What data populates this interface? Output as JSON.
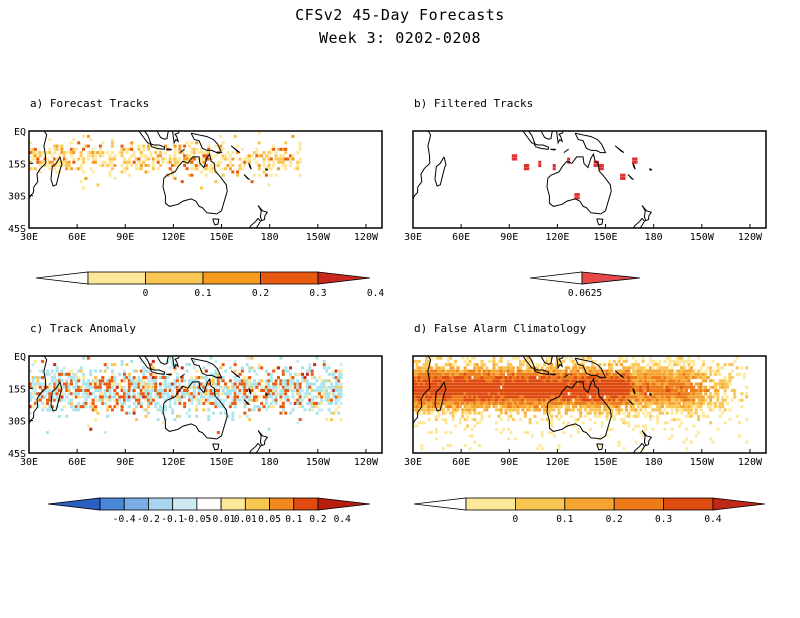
{
  "figure": {
    "title_line1": "CFSv2 45-Day Forecasts",
    "title_line2": "Week 3: 0202-0208"
  },
  "chart_data": [
    {
      "type": "heatmap",
      "title": "a) Forecast Tracks",
      "xticks": [
        "30E",
        "60E",
        "90E",
        "120E",
        "150E",
        "180",
        "150W",
        "120W"
      ],
      "yticks": [
        "EQ",
        "15S",
        "30S",
        "45S"
      ],
      "xlim": [
        30,
        250
      ],
      "ylim": [
        -45,
        0
      ],
      "colorbar": {
        "ticks": [
          "0",
          "0.1",
          "0.2",
          "0.3",
          "0.4"
        ],
        "colors": [
          "#ffffff",
          "#fde89a",
          "#f9c653",
          "#f59c20",
          "#e85a10",
          "#c82820"
        ]
      },
      "field_colors": [
        "#fde89a",
        "#f9c653",
        "#f59c20",
        "#e85a10"
      ]
    },
    {
      "type": "heatmap",
      "title": "b) Filtered Tracks",
      "xticks": [
        "30E",
        "60E",
        "90E",
        "120E",
        "150E",
        "180",
        "150W",
        "120W"
      ],
      "yticks": [],
      "xlim": [
        30,
        250
      ],
      "ylim": [
        -45,
        0
      ],
      "colorbar": {
        "ticks": [
          "0.0625"
        ],
        "colors": [
          "#ffffff",
          "#e54a4a"
        ]
      },
      "field_colors": [
        "#e03030"
      ]
    },
    {
      "type": "heatmap",
      "title": "c) Track Anomaly",
      "xticks": [
        "30E",
        "60E",
        "90E",
        "120E",
        "150E",
        "180",
        "150W",
        "120W"
      ],
      "yticks": [
        "EQ",
        "15S",
        "30S",
        "45S"
      ],
      "xlim": [
        30,
        250
      ],
      "ylim": [
        -45,
        0
      ],
      "colorbar": {
        "ticks": [
          "-0.4",
          "-0.2",
          "-0.1",
          "-0.05",
          "-0.01",
          "0.01",
          "0.05",
          "0.1",
          "0.2",
          "0.4"
        ],
        "colors": [
          "#2a5fbf",
          "#4b86d8",
          "#7aaee8",
          "#a8d4ef",
          "#cdeaf4",
          "#ffffff",
          "#fde89a",
          "#f9c653",
          "#f08a20",
          "#e04a10",
          "#b81e10"
        ]
      },
      "field_colors": [
        "#a8e4ec",
        "#c4ecf2",
        "#fde89a",
        "#f9c653",
        "#e85a10",
        "#c82820"
      ]
    },
    {
      "type": "heatmap",
      "title": "d) False Alarm Climatology",
      "xticks": [
        "30E",
        "60E",
        "90E",
        "120E",
        "150E",
        "180",
        "150W",
        "120W"
      ],
      "yticks": [],
      "xlim": [
        30,
        250
      ],
      "ylim": [
        -45,
        0
      ],
      "colorbar": {
        "ticks": [
          "0",
          "0.1",
          "0.2",
          "0.3",
          "0.4"
        ],
        "colors": [
          "#ffffff",
          "#fde89a",
          "#f9c653",
          "#f5a530",
          "#ee7a18",
          "#de4a10",
          "#c02818"
        ]
      },
      "field_colors": [
        "#fde89a",
        "#f9c653",
        "#f5a530",
        "#ee7a18",
        "#de4a10"
      ]
    }
  ]
}
